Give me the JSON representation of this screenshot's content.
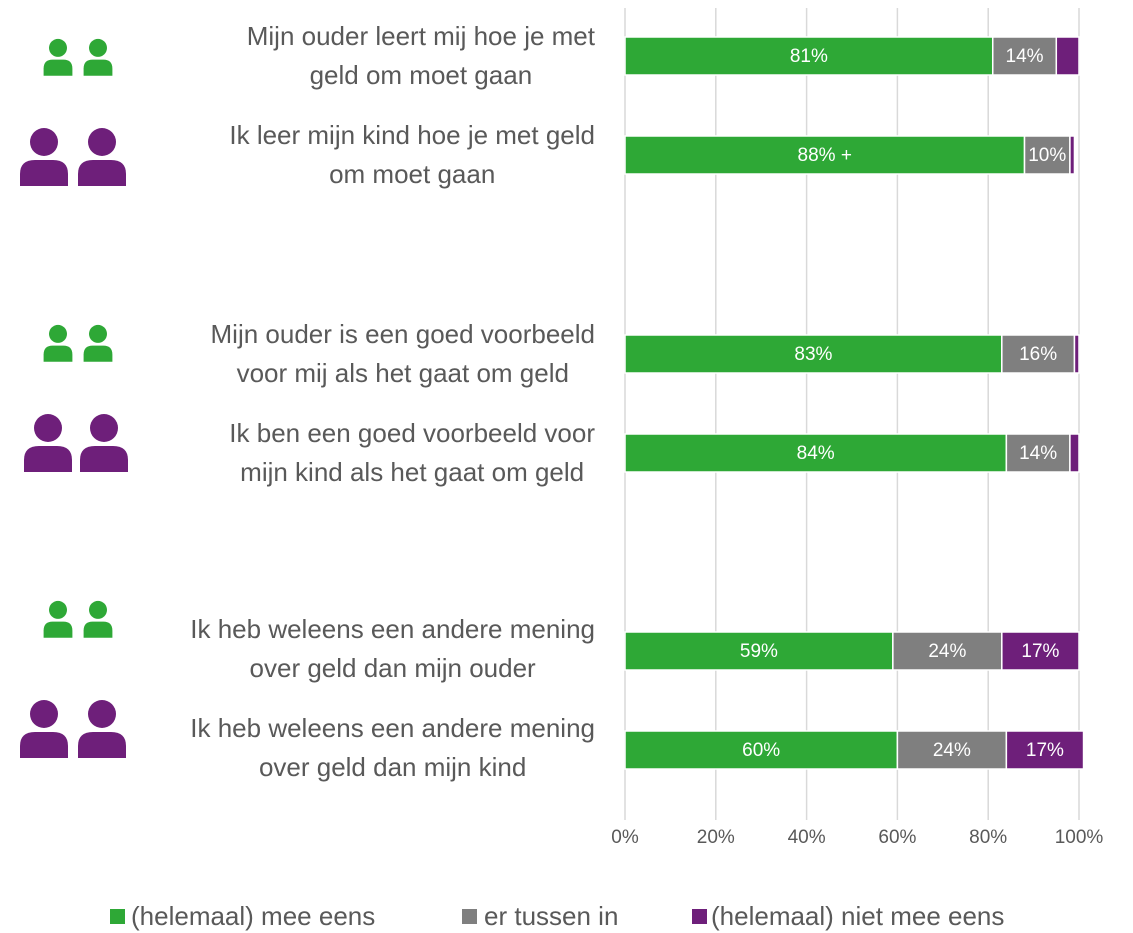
{
  "chart_data": {
    "type": "stacked-bar-horizontal",
    "categories": [
      "Mijn ouder leert mij hoe je met\ngeld om moet gaan",
      "Ik leer mijn kind hoe je met geld\nom moet gaan",
      "Mijn ouder is een goed voorbeeld\nvoor mij als het gaat om geld",
      "Ik ben een goed voorbeeld voor\nmijn kind als het gaat om geld",
      "Ik heb weleens een andere mening\nover geld dan mijn ouder",
      "Ik heb weleens een andere mening\nover geld dan mijn kind"
    ],
    "series": [
      {
        "name": "(helemaal) mee eens",
        "color": "#2ea836",
        "values": [
          81,
          88,
          83,
          84,
          59,
          60
        ],
        "value_labels": [
          "81%",
          "88% +",
          "83%",
          "84%",
          "59%",
          "60%"
        ]
      },
      {
        "name": "er tussen in",
        "color": "#7f7f7f",
        "values": [
          14,
          10,
          16,
          14,
          24,
          24
        ],
        "value_labels": [
          "14%",
          "10%",
          "16%",
          "14%",
          "24%",
          "24%"
        ]
      },
      {
        "name": "(helemaal) niet mee eens",
        "color": "#6e1f7a",
        "values": [
          5,
          1,
          1,
          2,
          17,
          17
        ],
        "value_labels": [
          null,
          null,
          null,
          null,
          "17%",
          "17%"
        ]
      }
    ],
    "xlim": [
      0,
      100
    ],
    "xticks": [
      {
        "value": 0,
        "label": "0%"
      },
      {
        "value": 20,
        "label": "20%"
      },
      {
        "value": 40,
        "label": "40%"
      },
      {
        "value": 60,
        "label": "60%"
      },
      {
        "value": 80,
        "label": "80%"
      },
      {
        "value": 100,
        "label": "100%"
      }
    ],
    "grid": true,
    "legend": "bottom"
  }
}
